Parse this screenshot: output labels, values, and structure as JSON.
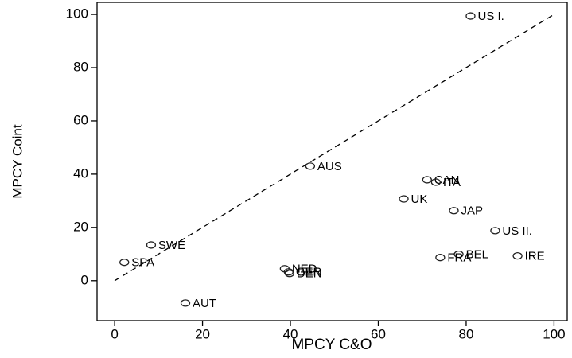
{
  "chart_data": {
    "type": "scatter",
    "x_label": "MPCY C&O",
    "y_label": "MPCY Coint",
    "xlim": [
      -4,
      103
    ],
    "ylim": [
      -15,
      104.5
    ],
    "xticks": [
      0,
      20,
      40,
      60,
      80,
      100
    ],
    "yticks": [
      0,
      20,
      40,
      60,
      80,
      100
    ],
    "grid": false,
    "color": "#222222",
    "labels": [
      "US I.",
      "AUS",
      "CAN",
      "ITA",
      "UK",
      "JAP",
      "US II.",
      "BEL",
      "FRA",
      "IRE",
      "SWE",
      "SPA",
      "NED",
      "GER",
      "DEN",
      "AUT"
    ],
    "x": [
      81.0,
      44.5,
      71.1,
      73.1,
      65.8,
      77.2,
      86.6,
      78.3,
      74.1,
      91.7,
      8.3,
      2.2,
      38.7,
      39.6,
      39.8,
      16.1
    ],
    "y": [
      99.4,
      43.0,
      37.9,
      37.0,
      30.7,
      26.3,
      18.8,
      9.9,
      8.7,
      9.3,
      13.4,
      6.9,
      4.5,
      3.3,
      2.7,
      -8.4
    ],
    "reference_line": {
      "x": [
        0,
        100
      ],
      "y": [
        0,
        100
      ],
      "style": "dashed"
    }
  }
}
